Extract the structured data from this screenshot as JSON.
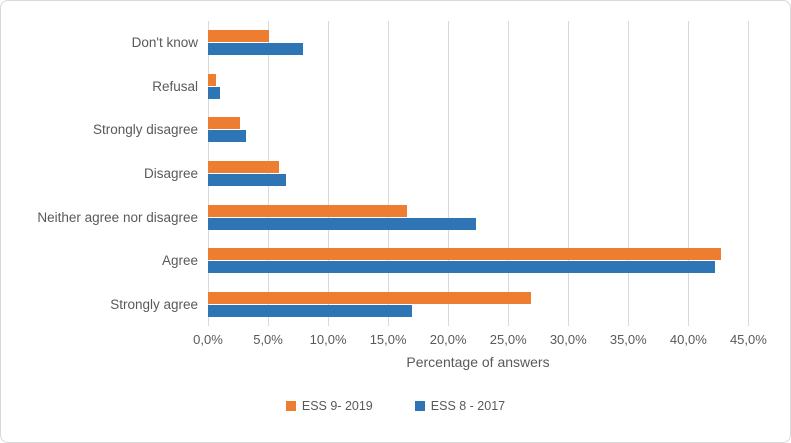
{
  "chart_data": {
    "type": "bar",
    "orientation": "horizontal",
    "title": "",
    "xlabel": "Percentage of answers",
    "ylabel": "",
    "categories": [
      "Don't know",
      "Refusal",
      "Strongly disagree",
      "Disagree",
      "Neither agree nor disagree",
      "Agree",
      "Strongly agree"
    ],
    "series": [
      {
        "name": "ESS 9- 2019",
        "color": "#ED7D31",
        "values": [
          5.1,
          0.7,
          2.7,
          5.9,
          16.6,
          42.7,
          26.9
        ]
      },
      {
        "name": "ESS 8 - 2017",
        "color": "#2E75B6",
        "values": [
          7.9,
          1.0,
          3.2,
          6.5,
          22.3,
          42.2,
          17.0
        ]
      }
    ],
    "xlim": [
      0,
      47.8
    ],
    "xticks": [
      {
        "value": 0,
        "label": "0,0%"
      },
      {
        "value": 5,
        "label": "5,0%"
      },
      {
        "value": 10,
        "label": "10,0%"
      },
      {
        "value": 15,
        "label": "15,0%"
      },
      {
        "value": 20,
        "label": "20,0%"
      },
      {
        "value": 25,
        "label": "25,0%"
      },
      {
        "value": 30,
        "label": "30,0%"
      },
      {
        "value": 35,
        "label": "35,0%"
      },
      {
        "value": 40,
        "label": "40,0%"
      },
      {
        "value": 45,
        "label": "45,0%"
      }
    ],
    "grid": true,
    "legend_position": "bottom",
    "colors": {
      "text": "#595959",
      "gridline": "#D9D9D9",
      "frame_border": "#D9D9D9",
      "background": "#FFFFFF"
    }
  }
}
